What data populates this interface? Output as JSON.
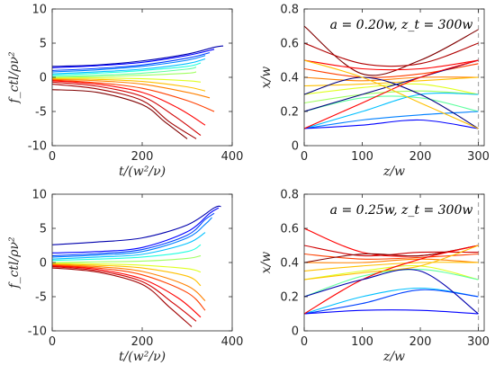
{
  "colors": {
    "axis": "#262626",
    "dashed_marker": "#aaaaaa",
    "colormap": "jet"
  },
  "chart_data": [
    {
      "type": "line",
      "panel": "top-left",
      "xlabel": "t/(w²/ν)",
      "ylabel": "f_ctl/ρν²",
      "xlim": [
        0,
        400
      ],
      "ylim": [
        -10,
        10
      ],
      "xticks": [
        0,
        200,
        400
      ],
      "yticks": [
        10,
        5,
        0,
        -5,
        -10
      ],
      "grid": false,
      "series": [
        {
          "color": "#0000ad",
          "x": [
            0,
            100,
            200,
            300,
            360,
            380
          ],
          "y": [
            1.6,
            1.8,
            2.4,
            3.4,
            4.4,
            4.6
          ]
        },
        {
          "color": "#0000ff",
          "x": [
            0,
            100,
            200,
            300,
            360
          ],
          "y": [
            1.4,
            1.7,
            2.2,
            3.2,
            4.1
          ]
        },
        {
          "color": "#0040ff",
          "x": [
            0,
            100,
            200,
            300,
            350
          ],
          "y": [
            1.0,
            1.3,
            1.8,
            2.8,
            3.6
          ]
        },
        {
          "color": "#0080ff",
          "x": [
            0,
            100,
            200,
            300,
            340
          ],
          "y": [
            0.8,
            1.1,
            1.6,
            2.5,
            3.2
          ]
        },
        {
          "color": "#00c0ff",
          "x": [
            0,
            100,
            200,
            300,
            340
          ],
          "y": [
            0.5,
            0.8,
            1.2,
            2.0,
            2.7
          ]
        },
        {
          "color": "#20ffe0",
          "x": [
            0,
            100,
            200,
            300,
            330
          ],
          "y": [
            0.3,
            0.6,
            1.0,
            1.6,
            2.1
          ]
        },
        {
          "color": "#60ffa0",
          "x": [
            0,
            100,
            200,
            300,
            320
          ],
          "y": [
            0.1,
            0.3,
            0.6,
            1.2,
            1.5
          ]
        },
        {
          "color": "#a0ff60",
          "x": [
            0,
            100,
            200,
            300,
            320
          ],
          "y": [
            0.0,
            0.1,
            0.3,
            0.6,
            0.8
          ]
        },
        {
          "color": "#e0ff20",
          "x": [
            0,
            100,
            200,
            300,
            330
          ],
          "y": [
            -0.1,
            -0.1,
            -0.2,
            -0.5,
            -0.7
          ]
        },
        {
          "color": "#ffc000",
          "x": [
            0,
            100,
            200,
            300,
            340
          ],
          "y": [
            -0.2,
            -0.3,
            -0.6,
            -1.4,
            -2.0
          ]
        },
        {
          "color": "#ff8000",
          "x": [
            0,
            100,
            200,
            300,
            350
          ],
          "y": [
            -0.3,
            -0.5,
            -1.0,
            -2.2,
            -3.0
          ]
        },
        {
          "color": "#ff4000",
          "x": [
            0,
            100,
            200,
            300,
            360
          ],
          "y": [
            -0.4,
            -0.8,
            -1.6,
            -3.4,
            -5.0
          ]
        },
        {
          "color": "#ff0000",
          "x": [
            0,
            100,
            200,
            280,
            340
          ],
          "y": [
            -0.5,
            -1.0,
            -2.2,
            -4.5,
            -7.0
          ]
        },
        {
          "color": "#d00000",
          "x": [
            0,
            100,
            200,
            270,
            330
          ],
          "y": [
            -0.7,
            -1.3,
            -2.8,
            -5.6,
            -8.5
          ]
        },
        {
          "color": "#a00000",
          "x": [
            0,
            100,
            200,
            260,
            320
          ],
          "y": [
            -1.0,
            -1.7,
            -3.4,
            -6.5,
            -9.0
          ]
        },
        {
          "color": "#800000",
          "x": [
            0,
            100,
            200,
            250,
            300
          ],
          "y": [
            -1.8,
            -2.2,
            -4.0,
            -6.5,
            -9.0
          ]
        }
      ]
    },
    {
      "type": "line",
      "panel": "top-right",
      "xlabel": "z/w",
      "ylabel": "x/w",
      "xlim": [
        0,
        310
      ],
      "ylim": [
        0,
        0.8
      ],
      "xticks": [
        0,
        100,
        200,
        300
      ],
      "yticks": [
        0.8,
        0.6,
        0.4,
        0.2,
        0
      ],
      "grid": false,
      "annotation": "a = 0.20w, z_t = 300w",
      "dashed_vline_x": 300,
      "series": [
        {
          "color": "#800000",
          "x": [
            0,
            100,
            200,
            300
          ],
          "y": [
            0.7,
            0.42,
            0.5,
            0.68
          ]
        },
        {
          "color": "#b00000",
          "x": [
            0,
            100,
            200,
            300
          ],
          "y": [
            0.6,
            0.48,
            0.48,
            0.6
          ]
        },
        {
          "color": "#ff0000",
          "x": [
            0,
            100,
            200,
            300
          ],
          "y": [
            0.5,
            0.45,
            0.45,
            0.5
          ]
        },
        {
          "color": "#ff4000",
          "x": [
            0,
            100,
            200,
            300
          ],
          "y": [
            0.45,
            0.4,
            0.42,
            0.48
          ]
        },
        {
          "color": "#ff8000",
          "x": [
            0,
            100,
            200,
            300
          ],
          "y": [
            0.4,
            0.38,
            0.4,
            0.4
          ]
        },
        {
          "color": "#ffc000",
          "x": [
            0,
            100,
            200,
            300
          ],
          "y": [
            0.35,
            0.36,
            0.38,
            0.4
          ]
        },
        {
          "color": "#e0ff20",
          "x": [
            0,
            100,
            200,
            300
          ],
          "y": [
            0.3,
            0.34,
            0.36,
            0.3
          ]
        },
        {
          "color": "#a0ff60",
          "x": [
            0,
            100,
            200,
            300
          ],
          "y": [
            0.25,
            0.3,
            0.32,
            0.3
          ]
        },
        {
          "color": "#60ffa0",
          "x": [
            0,
            100,
            200,
            300
          ],
          "y": [
            0.2,
            0.28,
            0.28,
            0.2
          ]
        },
        {
          "color": "#00c0ff",
          "x": [
            0,
            100,
            200,
            300
          ],
          "y": [
            0.1,
            0.2,
            0.3,
            0.3
          ]
        },
        {
          "color": "#0080ff",
          "x": [
            0,
            100,
            200,
            300
          ],
          "y": [
            0.1,
            0.15,
            0.18,
            0.2
          ]
        },
        {
          "color": "#0000ff",
          "x": [
            0,
            100,
            200,
            300
          ],
          "y": [
            0.1,
            0.12,
            0.15,
            0.1
          ]
        },
        {
          "color": "#000080",
          "x": [
            0,
            100,
            200,
            300
          ],
          "y": [
            0.2,
            0.3,
            0.4,
            0.5
          ]
        },
        {
          "color": "#000080",
          "x": [
            0,
            100,
            200,
            300
          ],
          "y": [
            0.3,
            0.4,
            0.3,
            0.1
          ]
        },
        {
          "color": "#ff0000",
          "x": [
            0,
            100,
            200,
            300
          ],
          "y": [
            0.1,
            0.25,
            0.4,
            0.5
          ]
        },
        {
          "color": "#ffc000",
          "x": [
            0,
            100,
            200,
            300
          ],
          "y": [
            0.5,
            0.4,
            0.25,
            0.1
          ]
        }
      ]
    },
    {
      "type": "line",
      "panel": "bottom-left",
      "xlabel": "t/(w²/ν)",
      "ylabel": "f_ctl/ρν²",
      "xlim": [
        0,
        400
      ],
      "ylim": [
        -10,
        10
      ],
      "xticks": [
        0,
        200,
        400
      ],
      "yticks": [
        10,
        5,
        0,
        -5,
        -10
      ],
      "grid": false,
      "series": [
        {
          "color": "#0000ad",
          "x": [
            0,
            100,
            200,
            300,
            360,
            375
          ],
          "y": [
            2.6,
            3.0,
            3.6,
            5.5,
            8.0,
            8.2
          ]
        },
        {
          "color": "#0000ff",
          "x": [
            0,
            100,
            200,
            300,
            350,
            370
          ],
          "y": [
            1.4,
            1.6,
            2.2,
            4.5,
            7.2,
            8.0
          ]
        },
        {
          "color": "#0040ff",
          "x": [
            0,
            100,
            200,
            300,
            340,
            360
          ],
          "y": [
            1.0,
            1.3,
            1.9,
            4.0,
            6.3,
            7.2
          ]
        },
        {
          "color": "#0080ff",
          "x": [
            0,
            100,
            200,
            300,
            340,
            355
          ],
          "y": [
            0.8,
            1.1,
            1.6,
            3.6,
            5.6,
            6.6
          ]
        },
        {
          "color": "#00c0ff",
          "x": [
            0,
            100,
            200,
            300,
            340
          ],
          "y": [
            0.5,
            0.8,
            1.2,
            2.8,
            4.4
          ]
        },
        {
          "color": "#20ffe0",
          "x": [
            0,
            100,
            200,
            300,
            330
          ],
          "y": [
            0.3,
            0.5,
            0.8,
            1.6,
            2.6
          ]
        },
        {
          "color": "#a0ff60",
          "x": [
            0,
            100,
            200,
            300,
            330
          ],
          "y": [
            0.0,
            0.1,
            0.2,
            0.6,
            1.0
          ]
        },
        {
          "color": "#e0ff20",
          "x": [
            0,
            100,
            200,
            300,
            330
          ],
          "y": [
            -0.1,
            -0.2,
            -0.4,
            -0.9,
            -1.4
          ]
        },
        {
          "color": "#ffc000",
          "x": [
            0,
            100,
            200,
            300,
            330
          ],
          "y": [
            -0.2,
            -0.4,
            -0.8,
            -2.0,
            -3.4
          ]
        },
        {
          "color": "#ff8000",
          "x": [
            0,
            100,
            200,
            300,
            340
          ],
          "y": [
            -0.3,
            -0.6,
            -1.3,
            -3.4,
            -5.6
          ]
        },
        {
          "color": "#ff4000",
          "x": [
            0,
            100,
            200,
            300,
            340
          ],
          "y": [
            -0.4,
            -0.8,
            -1.8,
            -4.4,
            -7.0
          ]
        },
        {
          "color": "#ff0000",
          "x": [
            0,
            100,
            200,
            280,
            330
          ],
          "y": [
            -0.5,
            -1.0,
            -2.4,
            -5.2,
            -8.0
          ]
        },
        {
          "color": "#d00000",
          "x": [
            0,
            100,
            200,
            270,
            320
          ],
          "y": [
            -0.6,
            -1.2,
            -2.8,
            -6.0,
            -8.6
          ]
        },
        {
          "color": "#a00000",
          "x": [
            0,
            100,
            200,
            260,
            310
          ],
          "y": [
            -0.8,
            -1.4,
            -3.2,
            -6.5,
            -9.4
          ]
        }
      ]
    },
    {
      "type": "line",
      "panel": "bottom-right",
      "xlabel": "z/w",
      "ylabel": "x/w",
      "xlim": [
        0,
        310
      ],
      "ylim": [
        0,
        0.8
      ],
      "xticks": [
        0,
        100,
        200,
        300
      ],
      "yticks": [
        0.8,
        0.6,
        0.4,
        0.2,
        0
      ],
      "grid": false,
      "annotation": "a = 0.25w, z_t = 300w",
      "dashed_vline_x": 300,
      "series": [
        {
          "color": "#ff0000",
          "x": [
            0,
            100,
            200,
            300
          ],
          "y": [
            0.6,
            0.46,
            0.44,
            0.5
          ]
        },
        {
          "color": "#d00000",
          "x": [
            0,
            100,
            200,
            300
          ],
          "y": [
            0.5,
            0.44,
            0.46,
            0.46
          ]
        },
        {
          "color": "#ff4000",
          "x": [
            0,
            100,
            200,
            300
          ],
          "y": [
            0.45,
            0.42,
            0.43,
            0.45
          ]
        },
        {
          "color": "#ff8000",
          "x": [
            0,
            100,
            200,
            300
          ],
          "y": [
            0.4,
            0.4,
            0.42,
            0.4
          ]
        },
        {
          "color": "#ffc000",
          "x": [
            0,
            100,
            200,
            300
          ],
          "y": [
            0.35,
            0.38,
            0.4,
            0.4
          ]
        },
        {
          "color": "#e0ff20",
          "x": [
            0,
            100,
            200,
            300
          ],
          "y": [
            0.3,
            0.35,
            0.38,
            0.3
          ]
        },
        {
          "color": "#60ffa0",
          "x": [
            0,
            100,
            200,
            300
          ],
          "y": [
            0.2,
            0.32,
            0.36,
            0.3
          ]
        },
        {
          "color": "#00c0ff",
          "x": [
            0,
            100,
            200,
            300
          ],
          "y": [
            0.1,
            0.2,
            0.25,
            0.2
          ]
        },
        {
          "color": "#0040ff",
          "x": [
            0,
            100,
            200,
            300
          ],
          "y": [
            0.1,
            0.16,
            0.24,
            0.2
          ]
        },
        {
          "color": "#0000ff",
          "x": [
            0,
            100,
            200,
            300
          ],
          "y": [
            0.1,
            0.12,
            0.12,
            0.1
          ]
        },
        {
          "color": "#800000",
          "x": [
            0,
            100,
            200,
            300
          ],
          "y": [
            0.4,
            0.45,
            0.44,
            0.5
          ]
        },
        {
          "color": "#ff0000",
          "x": [
            0,
            100,
            200,
            300
          ],
          "y": [
            0.1,
            0.3,
            0.42,
            0.5
          ]
        },
        {
          "color": "#ffc000",
          "x": [
            0,
            100,
            200,
            300
          ],
          "y": [
            0.3,
            0.34,
            0.38,
            0.5
          ]
        },
        {
          "color": "#0000ad",
          "x": [
            0,
            100,
            200,
            300
          ],
          "y": [
            0.2,
            0.3,
            0.35,
            0.1
          ]
        }
      ]
    }
  ]
}
